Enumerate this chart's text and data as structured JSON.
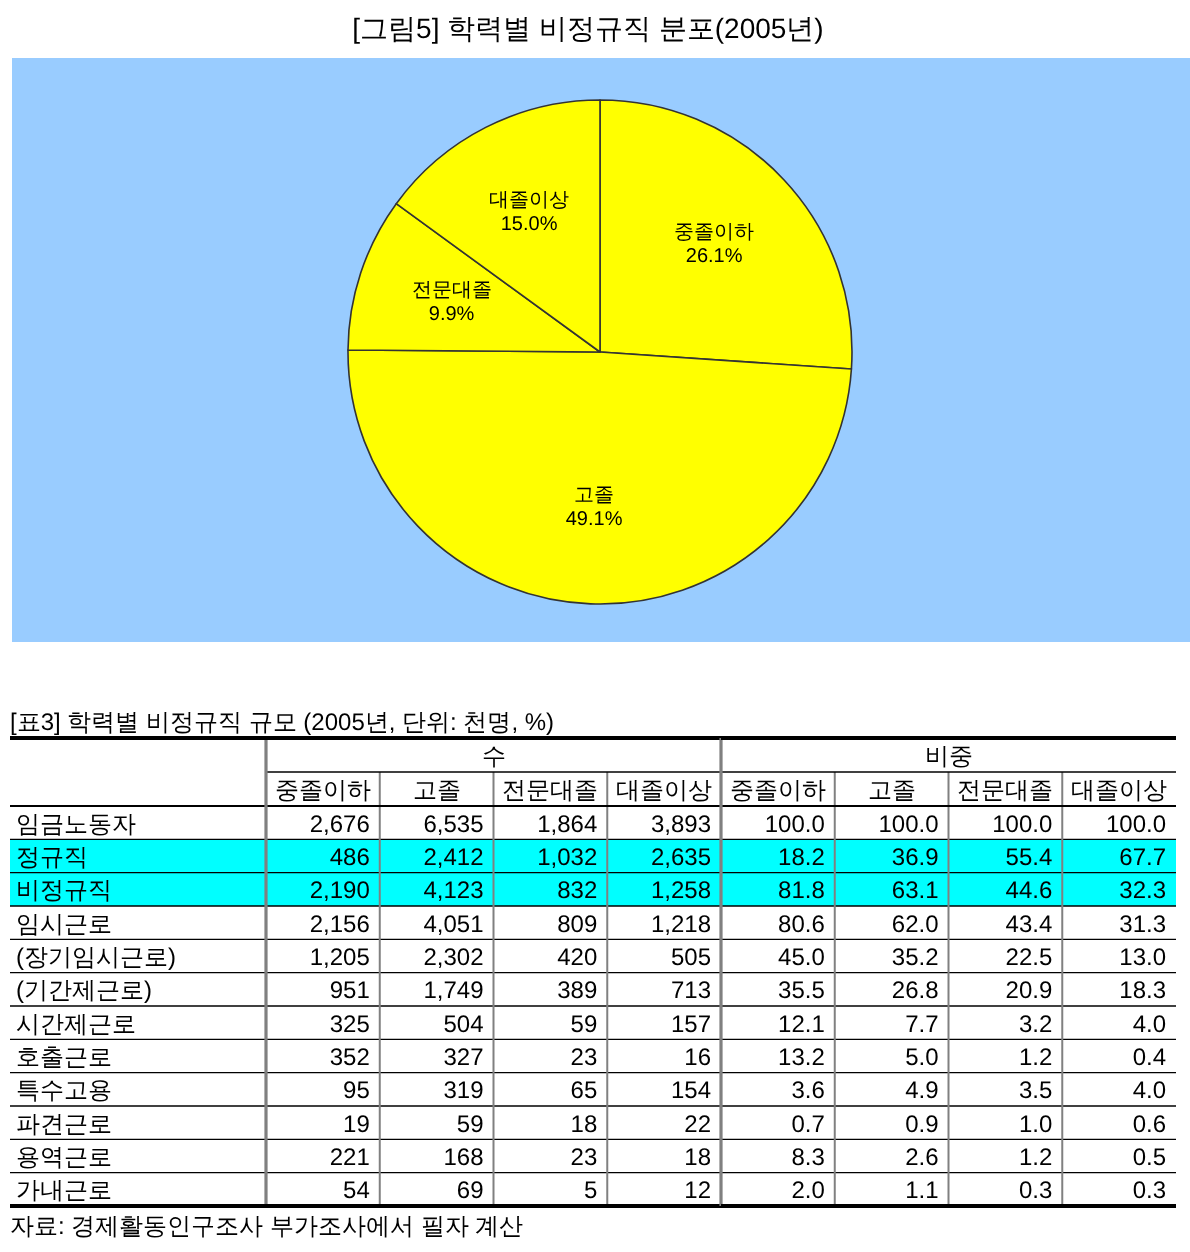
{
  "chart_data": [
    {
      "type": "pie",
      "title": "[그림5] 학력별 비정규직 분포(2005년)",
      "categories": [
        "중졸이하",
        "고졸",
        "전문대졸",
        "대졸이상"
      ],
      "values": [
        26.1,
        49.1,
        9.9,
        15.0
      ],
      "value_labels": [
        "26.1%",
        "49.1%",
        "9.9%",
        "15.0%"
      ],
      "colors": [
        "#ffff00",
        "#ffff00",
        "#ffff00",
        "#ffff00"
      ]
    },
    {
      "type": "heatmap",
      "title": "[표3] 학력별 비정규직 규모 (2005년, 단위: 천명, %)",
      "subtitle": "수",
      "categories": [
        "중졸이하",
        "고졸",
        "전문대졸",
        "대졸이상"
      ],
      "y_categories": [
        "임금노동자",
        "정규직",
        "비정규직",
        "임시근로",
        "(장기임시근로)",
        "(기간제근로)",
        "시간제근로",
        "호출근로",
        "특수고용",
        "파견근로",
        "용역근로",
        "가내근로"
      ],
      "grid": true,
      "cells": [
        [
          2676,
          6535,
          1864,
          3893
        ],
        [
          486,
          2412,
          1032,
          2635
        ],
        [
          2190,
          4123,
          832,
          1258
        ],
        [
          2156,
          4051,
          809,
          1218
        ],
        [
          1205,
          2302,
          420,
          505
        ],
        [
          951,
          1749,
          389,
          713
        ],
        [
          325,
          504,
          59,
          157
        ],
        [
          352,
          327,
          23,
          16
        ],
        [
          95,
          319,
          65,
          154
        ],
        [
          19,
          59,
          18,
          22
        ],
        [
          221,
          168,
          23,
          18
        ],
        [
          54,
          69,
          5,
          12
        ]
      ],
      "cell_labels": [
        [
          "2,676",
          "6,535",
          "1,864",
          "3,893"
        ],
        [
          "486",
          "2,412",
          "1,032",
          "2,635"
        ],
        [
          "2,190",
          "4,123",
          "832",
          "1,258"
        ],
        [
          "2,156",
          "4,051",
          "809",
          "1,218"
        ],
        [
          "1,205",
          "2,302",
          "420",
          "505"
        ],
        [
          "951",
          "1,749",
          "389",
          "713"
        ],
        [
          "325",
          "504",
          "59",
          "157"
        ],
        [
          "352",
          "327",
          "23",
          "16"
        ],
        [
          "95",
          "319",
          "65",
          "154"
        ],
        [
          "19",
          "59",
          "18",
          "22"
        ],
        [
          "221",
          "168",
          "23",
          "18"
        ],
        [
          "54",
          "69",
          "5",
          "12"
        ]
      ],
      "bands": [
        {
          "axis": "y",
          "from": "정규직",
          "to": "비정규직",
          "color": "#00ffff"
        }
      ],
      "annotations": [
        "자료: 경제활동인구조사 부가조사에서 필자 계산"
      ]
    },
    {
      "type": "heatmap",
      "subtitle": "비중",
      "categories": [
        "중졸이하",
        "고졸",
        "전문대졸",
        "대졸이상"
      ],
      "y_categories": [
        null,
        null,
        null,
        null,
        null,
        null,
        null,
        null,
        null,
        null,
        null,
        null
      ],
      "tick_labels": "x",
      "grid": true,
      "cells": [
        [
          100.0,
          100.0,
          100.0,
          100.0
        ],
        [
          18.2,
          36.9,
          55.4,
          67.7
        ],
        [
          81.8,
          63.1,
          44.6,
          32.3
        ],
        [
          80.6,
          62.0,
          43.4,
          31.3
        ],
        [
          45.0,
          35.2,
          22.5,
          13.0
        ],
        [
          35.5,
          26.8,
          20.9,
          18.3
        ],
        [
          12.1,
          7.7,
          3.2,
          4.0
        ],
        [
          13.2,
          5.0,
          1.2,
          0.4
        ],
        [
          3.6,
          4.9,
          3.5,
          4.0
        ],
        [
          0.7,
          0.9,
          1.0,
          0.6
        ],
        [
          8.3,
          2.6,
          1.2,
          0.5
        ],
        [
          2.0,
          1.1,
          0.3,
          0.3
        ]
      ],
      "cell_labels": [
        [
          "100.0",
          "100.0",
          "100.0",
          "100.0"
        ],
        [
          "18.2",
          "36.9",
          "55.4",
          "67.7"
        ],
        [
          "81.8",
          "63.1",
          "44.6",
          "32.3"
        ],
        [
          "80.6",
          "62.0",
          "43.4",
          "31.3"
        ],
        [
          "45.0",
          "35.2",
          "22.5",
          "13.0"
        ],
        [
          "35.5",
          "26.8",
          "20.9",
          "18.3"
        ],
        [
          "12.1",
          "7.7",
          "3.2",
          "4.0"
        ],
        [
          "13.2",
          "5.0",
          "1.2",
          "0.4"
        ],
        [
          "3.6",
          "4.9",
          "3.5",
          "4.0"
        ],
        [
          "0.7",
          "0.9",
          "1.0",
          "0.6"
        ],
        [
          "8.3",
          "2.6",
          "1.2",
          "0.5"
        ],
        [
          "2.0",
          "1.1",
          "0.3",
          "0.3"
        ]
      ]
    }
  ]
}
